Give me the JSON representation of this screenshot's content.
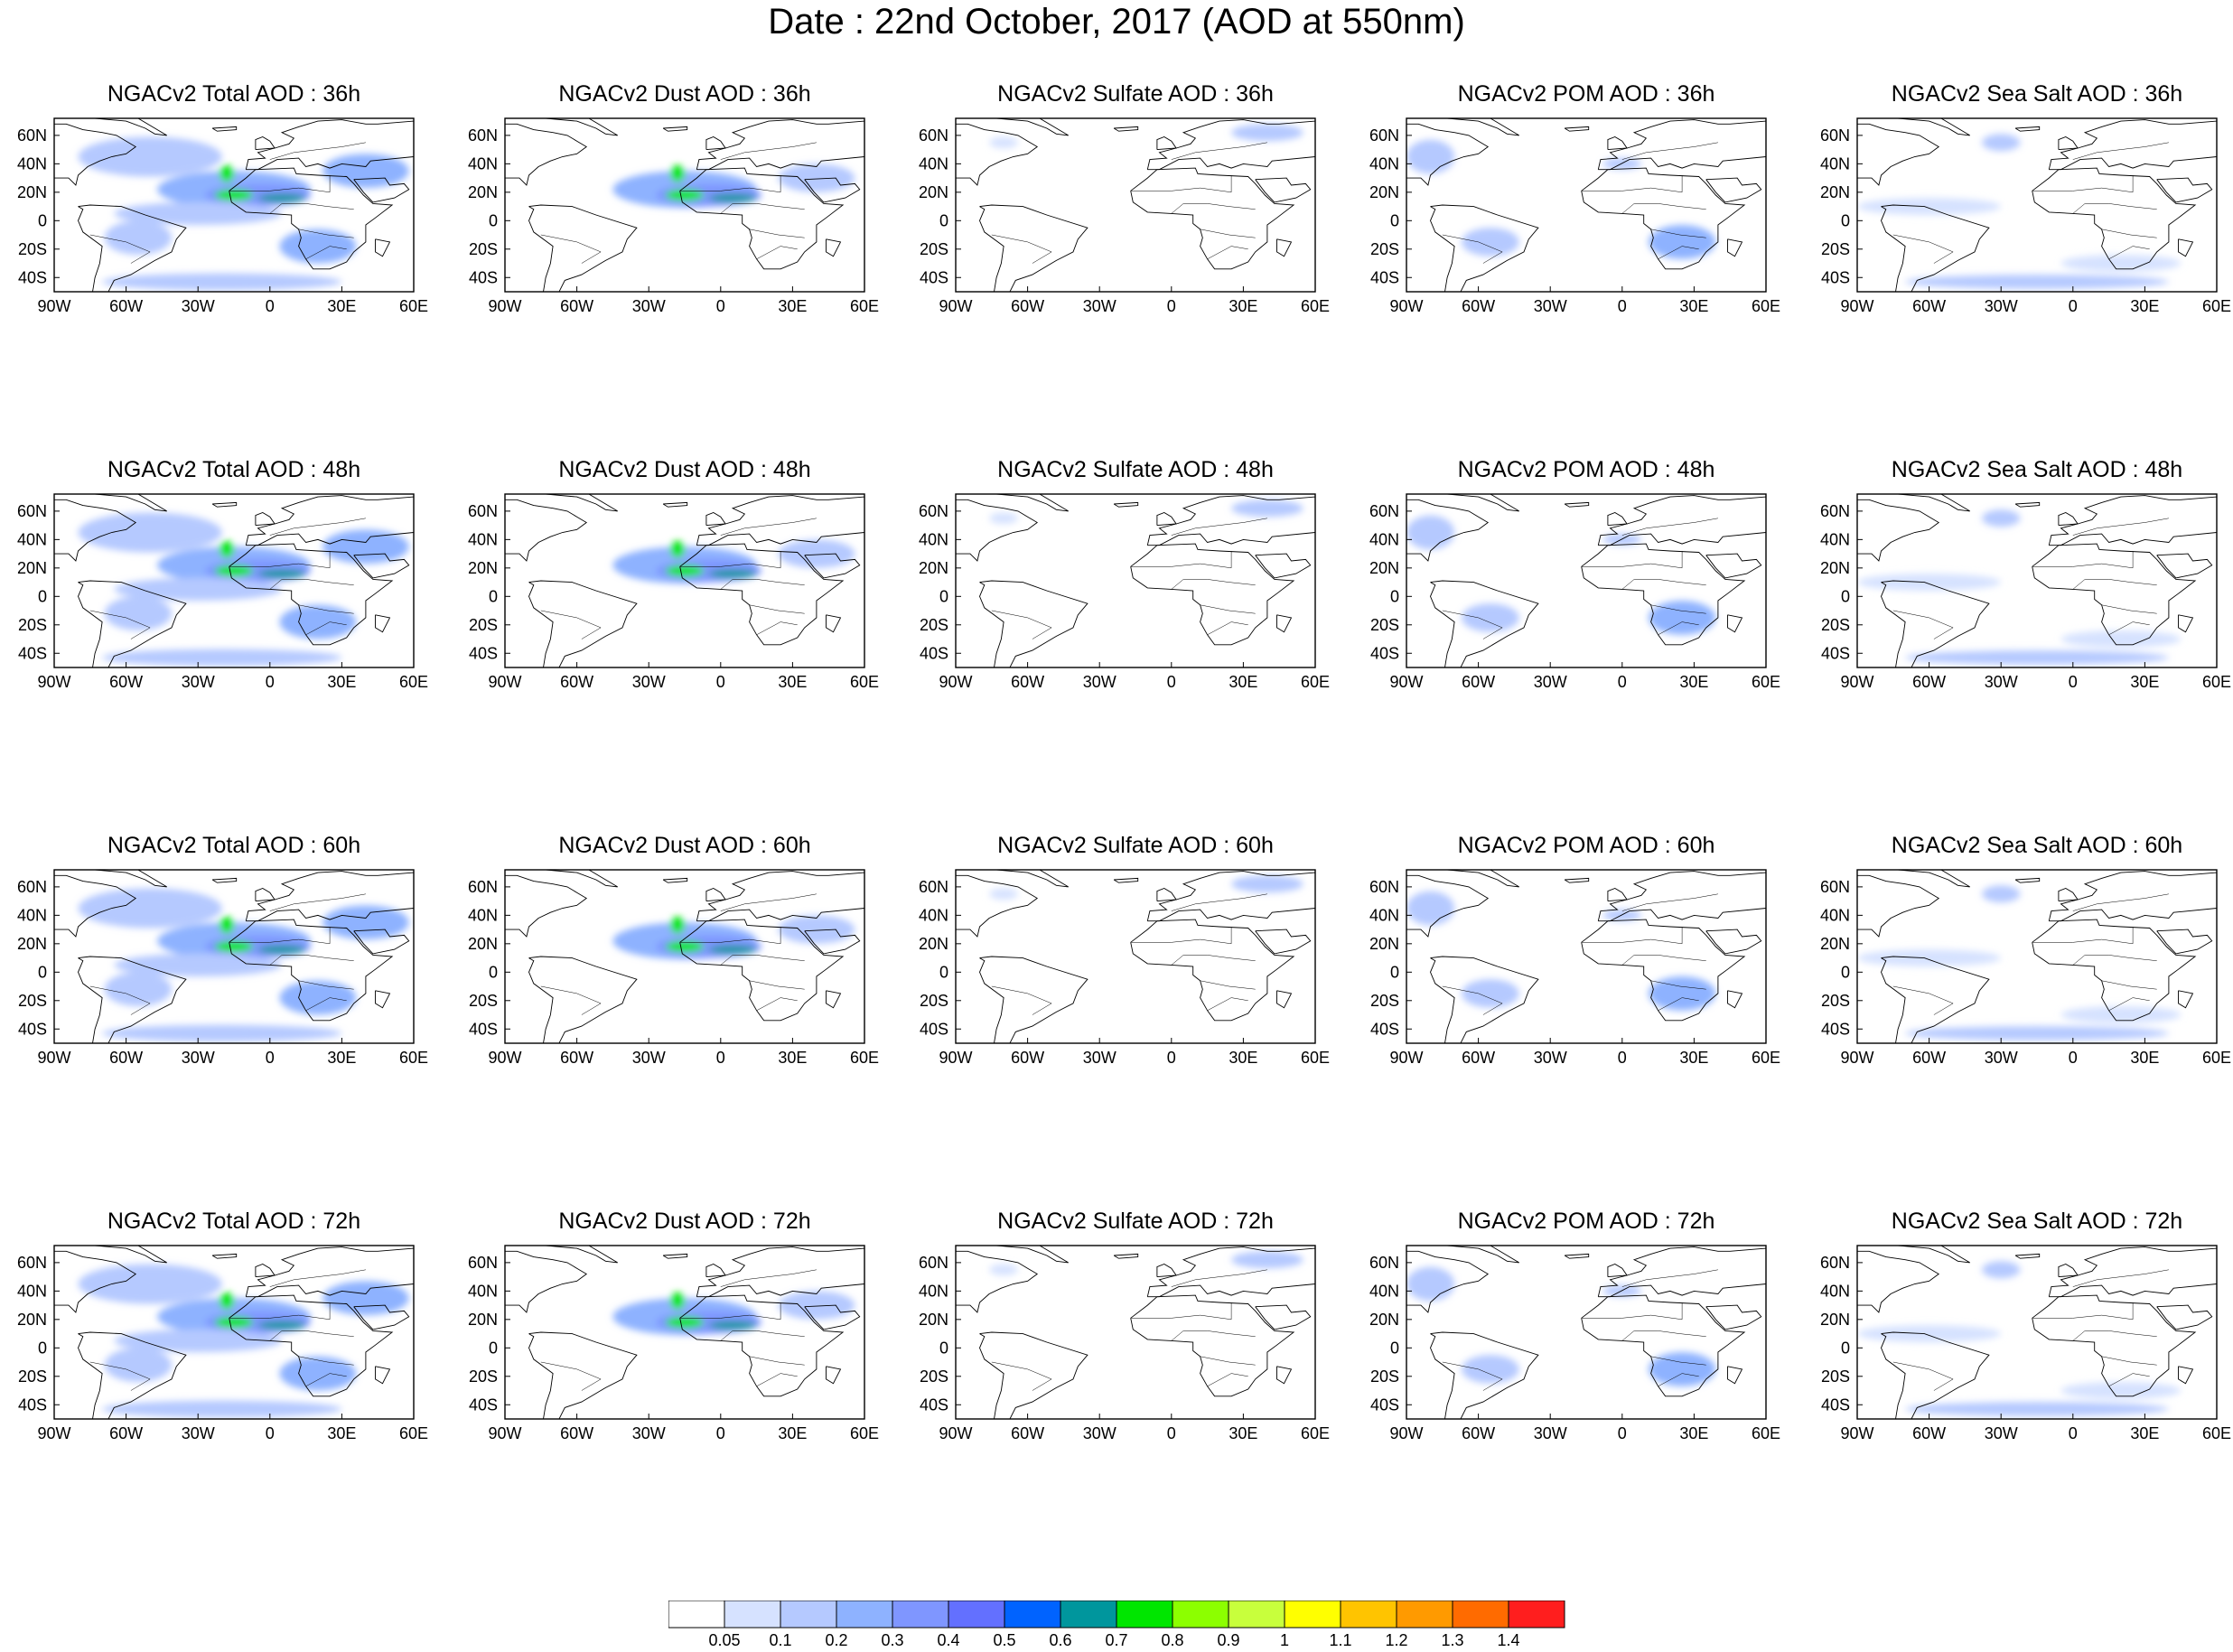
{
  "title": "Date : 22nd October, 2017 (AOD at 550nm)",
  "map_extent": {
    "lon": [
      -90,
      60
    ],
    "lat": [
      -50,
      72
    ]
  },
  "lon_ticks": [
    {
      "value": -90,
      "label": "90W"
    },
    {
      "value": -60,
      "label": "60W"
    },
    {
      "value": -30,
      "label": "30W"
    },
    {
      "value": 0,
      "label": "0"
    },
    {
      "value": 30,
      "label": "30E"
    },
    {
      "value": 60,
      "label": "60E"
    }
  ],
  "lat_ticks": [
    {
      "value": 60,
      "label": "60N"
    },
    {
      "value": 40,
      "label": "40N"
    },
    {
      "value": 20,
      "label": "20N"
    },
    {
      "value": 0,
      "label": "0"
    },
    {
      "value": -20,
      "label": "20S"
    },
    {
      "value": -40,
      "label": "40S"
    }
  ],
  "species": [
    {
      "key": "total",
      "name": "Total"
    },
    {
      "key": "dust",
      "name": "Dust"
    },
    {
      "key": "sulfate",
      "name": "Sulfate"
    },
    {
      "key": "pom",
      "name": "POM"
    },
    {
      "key": "seasalt",
      "name": "Sea Salt"
    }
  ],
  "panels": [
    {
      "title": "NGACv2 Total AOD : 36h",
      "species": "total",
      "forecast_hour": 36
    },
    {
      "title": "NGACv2 Dust AOD : 36h",
      "species": "dust",
      "forecast_hour": 36
    },
    {
      "title": "NGACv2 Sulfate AOD : 36h",
      "species": "sulfate",
      "forecast_hour": 36
    },
    {
      "title": "NGACv2 POM AOD : 36h",
      "species": "pom",
      "forecast_hour": 36
    },
    {
      "title": "NGACv2 Sea Salt AOD : 36h",
      "species": "seasalt",
      "forecast_hour": 36
    },
    {
      "title": "NGACv2 Total AOD : 48h",
      "species": "total",
      "forecast_hour": 48
    },
    {
      "title": "NGACv2 Dust AOD : 48h",
      "species": "dust",
      "forecast_hour": 48
    },
    {
      "title": "NGACv2 Sulfate AOD : 48h",
      "species": "sulfate",
      "forecast_hour": 48
    },
    {
      "title": "NGACv2 POM AOD : 48h",
      "species": "pom",
      "forecast_hour": 48
    },
    {
      "title": "NGACv2 Sea Salt AOD : 48h",
      "species": "seasalt",
      "forecast_hour": 48
    },
    {
      "title": "NGACv2 Total AOD : 60h",
      "species": "total",
      "forecast_hour": 60
    },
    {
      "title": "NGACv2 Dust AOD : 60h",
      "species": "dust",
      "forecast_hour": 60
    },
    {
      "title": "NGACv2 Sulfate AOD : 60h",
      "species": "sulfate",
      "forecast_hour": 60
    },
    {
      "title": "NGACv2 POM AOD : 60h",
      "species": "pom",
      "forecast_hour": 60
    },
    {
      "title": "NGACv2 Sea Salt AOD : 60h",
      "species": "seasalt",
      "forecast_hour": 60
    },
    {
      "title": "NGACv2 Total AOD : 72h",
      "species": "total",
      "forecast_hour": 72
    },
    {
      "title": "NGACv2 Dust AOD : 72h",
      "species": "dust",
      "forecast_hour": 72
    },
    {
      "title": "NGACv2 Sulfate AOD : 72h",
      "species": "sulfate",
      "forecast_hour": 72
    },
    {
      "title": "NGACv2 POM AOD : 72h",
      "species": "pom",
      "forecast_hour": 72
    },
    {
      "title": "NGACv2 Sea Salt  AOD : 72h",
      "species": "seasalt",
      "forecast_hour": 72
    }
  ],
  "colorbar": {
    "levels": [
      "0.05",
      "0.1",
      "0.2",
      "0.3",
      "0.4",
      "0.5",
      "0.6",
      "0.7",
      "0.8",
      "0.9",
      "1",
      "1.1",
      "1.2",
      "1.3",
      "1.4"
    ],
    "colors": [
      "#ffffff",
      "#d6e2ff",
      "#b5c9ff",
      "#8eb2ff",
      "#7f96ff",
      "#6370ff",
      "#0063ff",
      "#00969d",
      "#00e600",
      "#8cff00",
      "#c8ff3c",
      "#ffff00",
      "#ffc400",
      "#ff9a00",
      "#ff6b00",
      "#ff1e1e"
    ]
  },
  "map_colors": {
    "coast": "#000000",
    "frame": "#000000"
  },
  "aerosol_regions": {
    "total": [
      {
        "lon": -15,
        "lat": 22,
        "rlon": 32,
        "rlat": 13,
        "level": 3
      },
      {
        "lon": -5,
        "lat": 18,
        "rlon": 22,
        "rlat": 8,
        "level": 4
      },
      {
        "lon": -15,
        "lat": 18,
        "rlon": 8,
        "rlat": 4,
        "level": 8
      },
      {
        "lon": -18,
        "lat": 33,
        "rlon": 3,
        "rlat": 6,
        "level": 8
      },
      {
        "lon": 5,
        "lat": 16,
        "rlon": 10,
        "rlat": 3,
        "level": 7
      },
      {
        "lon": 20,
        "lat": -18,
        "rlon": 16,
        "rlat": 12,
        "level": 3
      },
      {
        "lon": -55,
        "lat": -12,
        "rlon": 14,
        "rlat": 12,
        "level": 2
      },
      {
        "lon": 40,
        "lat": 35,
        "rlon": 18,
        "rlat": 12,
        "level": 3
      },
      {
        "lon": -50,
        "lat": 45,
        "rlon": 30,
        "rlat": 14,
        "level": 2
      },
      {
        "lon": -20,
        "lat": -43,
        "rlon": 50,
        "rlat": 6,
        "level": 2
      },
      {
        "lon": -30,
        "lat": 5,
        "rlon": 35,
        "rlat": 8,
        "level": 2
      }
    ],
    "dust": [
      {
        "lon": -15,
        "lat": 22,
        "rlon": 30,
        "rlat": 13,
        "level": 3
      },
      {
        "lon": -5,
        "lat": 18,
        "rlon": 22,
        "rlat": 8,
        "level": 4
      },
      {
        "lon": -15,
        "lat": 18,
        "rlon": 8,
        "rlat": 4,
        "level": 8
      },
      {
        "lon": -18,
        "lat": 33,
        "rlon": 3,
        "rlat": 6,
        "level": 8
      },
      {
        "lon": 5,
        "lat": 16,
        "rlon": 10,
        "rlat": 3,
        "level": 7
      },
      {
        "lon": 40,
        "lat": 30,
        "rlon": 16,
        "rlat": 10,
        "level": 2
      }
    ],
    "sulfate": [
      {
        "lon": 40,
        "lat": 62,
        "rlon": 15,
        "rlat": 6,
        "level": 2
      },
      {
        "lon": -70,
        "lat": 55,
        "rlon": 6,
        "rlat": 4,
        "level": 1
      }
    ],
    "pom": [
      {
        "lon": 25,
        "lat": -15,
        "rlon": 14,
        "rlat": 12,
        "level": 3
      },
      {
        "lon": -55,
        "lat": -15,
        "rlon": 12,
        "rlat": 10,
        "level": 2
      },
      {
        "lon": -80,
        "lat": 45,
        "rlon": 10,
        "rlat": 12,
        "level": 2
      },
      {
        "lon": 0,
        "lat": 40,
        "rlon": 8,
        "rlat": 4,
        "level": 2
      }
    ],
    "seasalt": [
      {
        "lon": -15,
        "lat": -43,
        "rlon": 55,
        "rlat": 5,
        "level": 2
      },
      {
        "lon": -30,
        "lat": 55,
        "rlon": 8,
        "rlat": 6,
        "level": 2
      },
      {
        "lon": -60,
        "lat": 10,
        "rlon": 30,
        "rlat": 6,
        "level": 1
      },
      {
        "lon": 20,
        "lat": -30,
        "rlon": 25,
        "rlat": 6,
        "level": 1
      }
    ]
  }
}
